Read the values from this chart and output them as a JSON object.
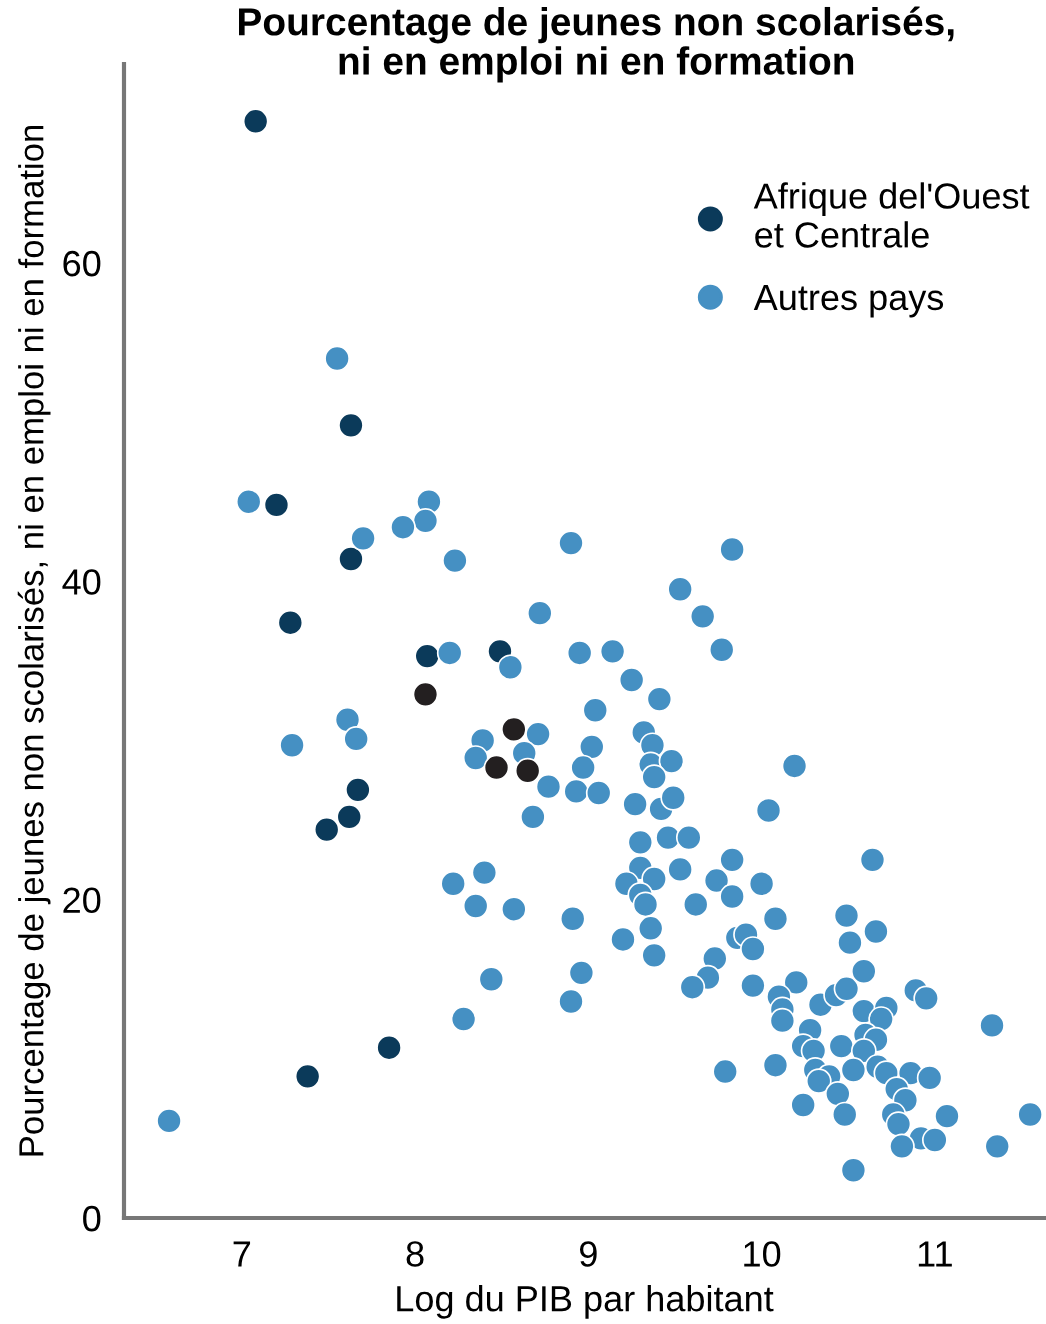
{
  "chart_data": {
    "type": "scatter",
    "title": "Pourcentage de jeunes non scolarisés,\nni en emploi ni en formation",
    "xlabel": "Log du PIB par habitant",
    "ylabel": "Pourcentage de jeunes non scolarisés, ni en emploi ni en formation",
    "xlim": [
      6.32,
      11.63
    ],
    "ylim": [
      0,
      72.5
    ],
    "xticks": [
      7,
      8,
      9,
      10,
      11
    ],
    "yticks": [
      0,
      20,
      40,
      60
    ],
    "grid": false,
    "legend": "top right",
    "marker": "circle",
    "series": [
      {
        "name": "Afrique del'Ouest\net Centrale",
        "color": "#0b3a5a",
        "x": [
          7.08,
          7.63,
          7.2,
          7.63,
          7.28,
          8.07,
          8.49,
          7.67,
          7.62,
          7.49,
          7.85,
          7.38
        ],
        "values": [
          68.9,
          49.8,
          44.8,
          41.4,
          37.4,
          35.3,
          35.6,
          26.9,
          25.2,
          24.4,
          10.7,
          8.9
        ]
      },
      {
        "name": "Autres pays",
        "color": "#4590c3",
        "x": [
          7.55,
          7.04,
          8.08,
          8.06,
          7.7,
          7.93,
          8.23,
          8.9,
          8.72,
          8.2,
          8.55,
          8.95,
          7.61,
          7.29,
          7.66,
          8.39,
          8.71,
          8.35,
          8.63,
          8.77,
          8.93,
          8.68,
          8.4,
          8.22,
          8.35,
          8.57,
          8.91,
          8.44,
          8.96,
          8.9,
          8.28,
          6.58,
          9.83,
          9.53,
          9.66,
          9.77,
          9.14,
          9.25,
          9.41,
          9.04,
          9.32,
          9.37,
          9.02,
          8.97,
          9.36,
          9.48,
          9.38,
          9.06,
          9.27,
          9.42,
          9.49,
          10.19,
          10.04,
          9.3,
          9.46,
          9.58,
          9.53,
          9.3,
          9.22,
          9.38,
          9.74,
          9.83,
          10.0,
          10.64,
          9.3,
          9.33,
          9.62,
          9.83,
          10.08,
          10.49,
          10.51,
          10.66,
          9.2,
          9.36,
          9.38,
          9.86,
          9.91,
          9.95,
          9.73,
          9.69,
          9.6,
          9.95,
          10.2,
          10.1,
          10.12,
          10.12,
          10.34,
          10.43,
          10.49,
          10.59,
          10.59,
          10.72,
          10.69,
          10.89,
          10.95,
          11.33,
          10.28,
          10.24,
          10.3,
          10.46,
          10.6,
          10.66,
          10.59,
          9.79,
          10.08,
          10.31,
          10.39,
          10.53,
          10.67,
          10.72,
          10.86,
          10.97,
          10.33,
          10.44,
          10.78,
          10.83,
          10.76,
          10.79,
          10.24,
          10.48,
          11.07,
          11.55,
          10.92,
          11.0,
          10.81,
          11.36,
          10.53
        ],
        "values": [
          54.0,
          45.0,
          45.0,
          43.8,
          42.7,
          43.4,
          41.3,
          42.4,
          38.0,
          35.5,
          34.6,
          35.5,
          31.3,
          29.7,
          30.1,
          30.0,
          30.4,
          28.9,
          29.2,
          27.1,
          26.8,
          25.2,
          21.7,
          21.0,
          19.6,
          19.4,
          18.8,
          15.0,
          15.4,
          13.6,
          12.5,
          6.1,
          42.0,
          39.5,
          37.8,
          35.7,
          35.6,
          33.8,
          32.6,
          31.9,
          30.5,
          29.7,
          29.6,
          28.3,
          28.5,
          28.7,
          27.7,
          26.7,
          26.0,
          25.7,
          26.4,
          28.4,
          25.6,
          23.6,
          23.9,
          23.9,
          21.9,
          22.0,
          21.0,
          21.3,
          21.2,
          22.5,
          21.0,
          22.5,
          20.3,
          19.7,
          19.7,
          20.2,
          18.8,
          19.0,
          17.3,
          18.0,
          17.5,
          18.2,
          16.5,
          17.6,
          17.8,
          16.9,
          16.3,
          15.1,
          14.5,
          14.6,
          14.8,
          13.9,
          13.1,
          12.4,
          13.4,
          14.0,
          14.4,
          15.5,
          13.0,
          13.2,
          12.5,
          14.3,
          13.8,
          12.1,
          11.8,
          10.8,
          10.5,
          10.8,
          11.5,
          11.2,
          10.5,
          9.2,
          9.6,
          9.3,
          8.9,
          9.3,
          9.5,
          9.1,
          9.1,
          8.8,
          8.6,
          7.8,
          8.1,
          7.4,
          6.5,
          5.9,
          7.1,
          6.5,
          6.4,
          6.5,
          5.0,
          4.9,
          4.5,
          4.5,
          3.0
        ]
      },
      {
        "color": "#231f20",
        "x": [
          8.06,
          8.57,
          8.47,
          8.65
        ],
        "values": [
          32.9,
          30.7,
          28.3,
          28.1
        ]
      }
    ]
  }
}
